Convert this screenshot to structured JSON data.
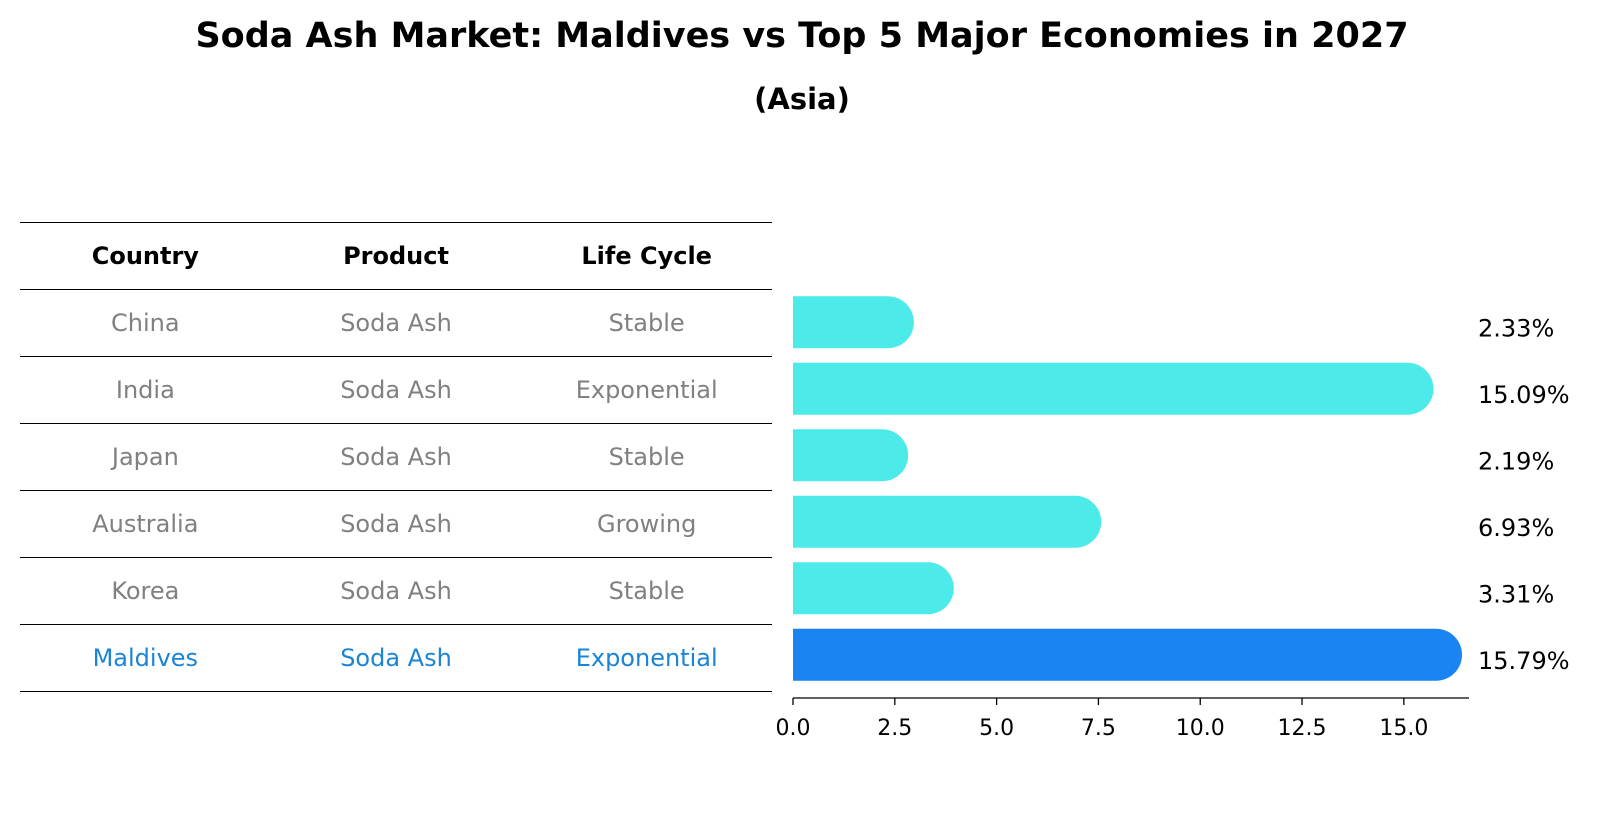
{
  "chart_data": {
    "type": "bar",
    "orientation": "horizontal",
    "title": "Soda Ash Market: Maldives vs Top 5 Major Economies in 2027",
    "subtitle": "(Asia)",
    "categories": [
      "China",
      "India",
      "Japan",
      "Australia",
      "Korea",
      "Maldives"
    ],
    "values": [
      2.33,
      15.09,
      2.19,
      6.93,
      3.31,
      15.79
    ],
    "value_labels": [
      "2.33%",
      "15.09%",
      "2.19%",
      "6.93%",
      "3.31%",
      "15.79%"
    ],
    "highlight_category": "Maldives",
    "xlim": [
      0,
      16.6
    ],
    "xticks": [
      0,
      2.5,
      5,
      7.5,
      10,
      12.5,
      15
    ],
    "xtick_labels": [
      "0.0",
      "2.5",
      "5.0",
      "7.5",
      "10.0",
      "12.5",
      "15.0"
    ],
    "grid": false,
    "colors": {
      "bar": "#4deaea",
      "highlight": "#1984f2",
      "highlight_text": "#1a85d6",
      "muted_text": "#808080"
    }
  },
  "table": {
    "headers": [
      "Country",
      "Product",
      "Life Cycle"
    ],
    "rows": [
      [
        "China",
        "Soda Ash",
        "Stable"
      ],
      [
        "India",
        "Soda Ash",
        "Exponential"
      ],
      [
        "Japan",
        "Soda Ash",
        "Stable"
      ],
      [
        "Australia",
        "Soda Ash",
        "Growing"
      ],
      [
        "Korea",
        "Soda Ash",
        "Stable"
      ],
      [
        "Maldives",
        "Soda Ash",
        "Exponential"
      ]
    ]
  }
}
